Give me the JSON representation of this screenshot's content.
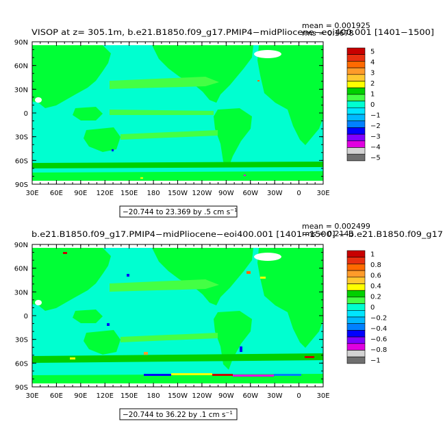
{
  "panels": [
    {
      "title": "VISOP at z= 305.1m, b.e21.B1850.f09_g17.PMIP4−midPliocene−eoi400.001 [1401−1500]",
      "stats": {
        "mean": "mean = 0.001925",
        "rms": "rms = 0.1678"
      },
      "range_label": "−20.744 to 23.369 by .5 cm s",
      "range_unit_exp": "−1",
      "colorbar": {
        "labels": [
          "5",
          "4",
          "3",
          "2",
          "1",
          "0",
          "−1",
          "−2",
          "−3",
          "−4",
          "−5"
        ],
        "colors": [
          "#c80000",
          "#e83010",
          "#ff6a00",
          "#ff9b2a",
          "#ffc830",
          "#ffff00",
          "#00d000",
          "#44ff44",
          "#00ffd0",
          "#00e5ff",
          "#00b8ff",
          "#0080ff",
          "#0000ff",
          "#8000ff",
          "#e000e0",
          "#d3d3d3",
          "#6f6f6f"
        ]
      }
    },
    {
      "title": "b.e21.B1850.f09_g17.PMIP4−midPliocene−eoi400.001 [1401−1500] − b.e21.B1850.f09_g17",
      "stats": {
        "mean": "mean = 0.002499",
        "rms": "rms = 0.2143"
      },
      "range_label": "−20.744 to 36.22 by .1 cm s",
      "range_unit_exp": "−1",
      "colorbar": {
        "labels": [
          "1",
          "0.8",
          "0.6",
          "0.4",
          "0.2",
          "0",
          "−0.2",
          "−0.4",
          "−0.6",
          "−0.8",
          "−1"
        ],
        "colors": [
          "#c80000",
          "#e83010",
          "#ff6a00",
          "#ff9b2a",
          "#ffc830",
          "#ffff00",
          "#00d000",
          "#44ff44",
          "#00ffd0",
          "#00e5ff",
          "#00b8ff",
          "#0080ff",
          "#0000ff",
          "#8000ff",
          "#e000e0",
          "#d3d3d3",
          "#6f6f6f"
        ]
      }
    }
  ],
  "axes": {
    "lat_labels": [
      "90N",
      "60N",
      "30N",
      "0",
      "30S",
      "60S",
      "90S"
    ],
    "lon_labels": [
      "30E",
      "60E",
      "90E",
      "120E",
      "150E",
      "180",
      "150W",
      "120W",
      "90W",
      "60W",
      "30W",
      "0",
      "30E"
    ]
  },
  "colors": {
    "ocean": "#00ffd0",
    "land": "#00ff36",
    "ice": "#ffffff"
  },
  "chart_data": [
    {
      "type": "heatmap",
      "title": "VISOP at z= 305.1m, b.e21.B1850.f09_g17.PMIP4−midPliocene−eoi400.001 [1401−1500]",
      "stats": {
        "mean": 0.001925,
        "rms": 0.1678
      },
      "x_ticks": [
        "30E",
        "60E",
        "90E",
        "120E",
        "150E",
        "180",
        "150W",
        "120W",
        "90W",
        "60W",
        "30W",
        "0",
        "30E"
      ],
      "y_ticks": [
        "90N",
        "60N",
        "30N",
        "0",
        "30S",
        "60S",
        "90S"
      ],
      "colorbar_levels": [
        5,
        4,
        3,
        2,
        1,
        0,
        -1,
        -2,
        -3,
        -4,
        -5
      ],
      "contour_range": {
        "min": -20.744,
        "max": 23.369,
        "interval": 0.5,
        "unit": "cm s^-1"
      }
    },
    {
      "type": "heatmap",
      "title": "b.e21.B1850.f09_g17.PMIP4−midPliocene−eoi400.001 [1401−1500] − b.e21.B1850.f09_g17",
      "stats": {
        "mean": 0.002499,
        "rms": 0.2143
      },
      "x_ticks": [
        "30E",
        "60E",
        "90E",
        "120E",
        "150E",
        "180",
        "150W",
        "120W",
        "90W",
        "60W",
        "30W",
        "0",
        "30E"
      ],
      "y_ticks": [
        "90N",
        "60N",
        "30N",
        "0",
        "30S",
        "60S",
        "90S"
      ],
      "colorbar_levels": [
        1,
        0.8,
        0.6,
        0.4,
        0.2,
        0,
        -0.2,
        -0.4,
        -0.6,
        -0.8,
        -1
      ],
      "contour_range": {
        "min": -20.744,
        "max": 36.22,
        "interval": 0.1,
        "unit": "cm s^-1"
      }
    }
  ]
}
